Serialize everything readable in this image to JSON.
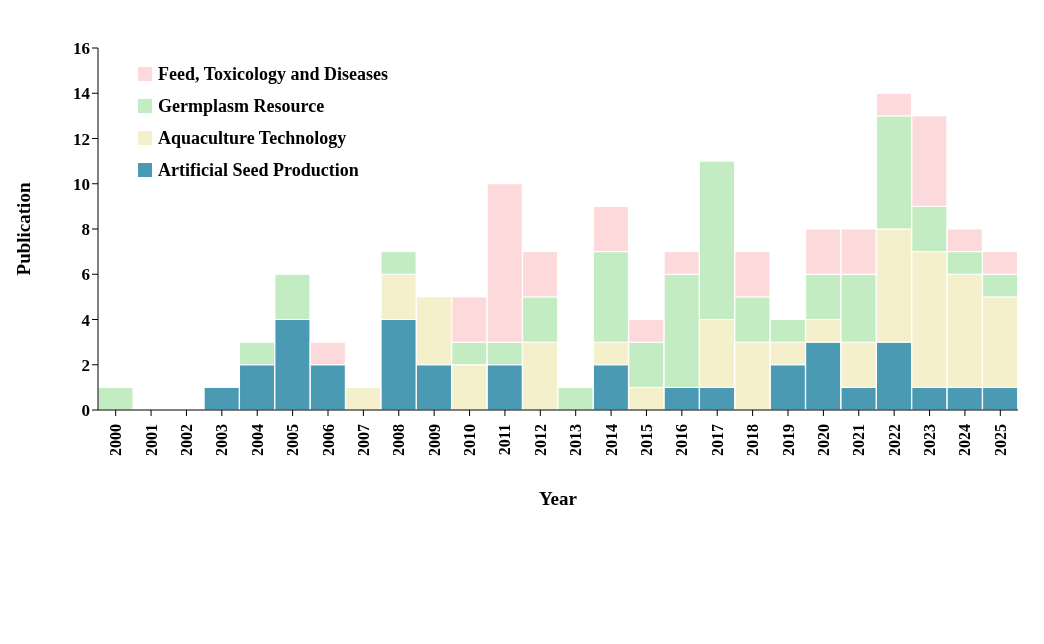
{
  "chart_data": {
    "type": "bar",
    "stacked": true,
    "xlabel": "Year",
    "ylabel": "Publication",
    "categories": [
      "2000",
      "2001",
      "2002",
      "2003",
      "2004",
      "2005",
      "2006",
      "2007",
      "2008",
      "2009",
      "2010",
      "2011",
      "2012",
      "2013",
      "2014",
      "2015",
      "2016",
      "2017",
      "2018",
      "2019",
      "2020",
      "2021",
      "2022",
      "2023",
      "2024",
      "2025"
    ],
    "series": [
      {
        "name": "Artificial Seed Production",
        "color": "#4a9ab3",
        "values": [
          0,
          0,
          0,
          1,
          2,
          4,
          2,
          0,
          4,
          2,
          0,
          2,
          0,
          0,
          2,
          0,
          1,
          1,
          0,
          2,
          3,
          1,
          3,
          1,
          1,
          1
        ]
      },
      {
        "name": "Aquaculture Technology",
        "color": "#f5f0cc",
        "values": [
          0,
          0,
          0,
          0,
          0,
          0,
          0,
          1,
          2,
          3,
          2,
          0,
          3,
          0,
          1,
          1,
          0,
          3,
          3,
          1,
          1,
          2,
          5,
          6,
          5,
          4
        ]
      },
      {
        "name": "Germplasm Resource",
        "color": "#c3ecc3",
        "values": [
          1,
          0,
          0,
          0,
          1,
          2,
          0,
          0,
          1,
          0,
          1,
          1,
          2,
          1,
          4,
          2,
          5,
          7,
          2,
          1,
          2,
          3,
          5,
          2,
          1,
          1
        ]
      },
      {
        "name": "Feed, Toxicology and Diseases",
        "color": "#fcdadb",
        "values": [
          0,
          0,
          0,
          0,
          0,
          0,
          1,
          0,
          0,
          0,
          2,
          7,
          2,
          0,
          2,
          1,
          1,
          0,
          2,
          0,
          2,
          2,
          1,
          4,
          1,
          1
        ]
      }
    ],
    "ylim": [
      0,
      16
    ],
    "yticks": [
      0,
      2,
      4,
      6,
      8,
      10,
      12,
      14,
      16
    ],
    "grid": false,
    "legend": "top left"
  }
}
